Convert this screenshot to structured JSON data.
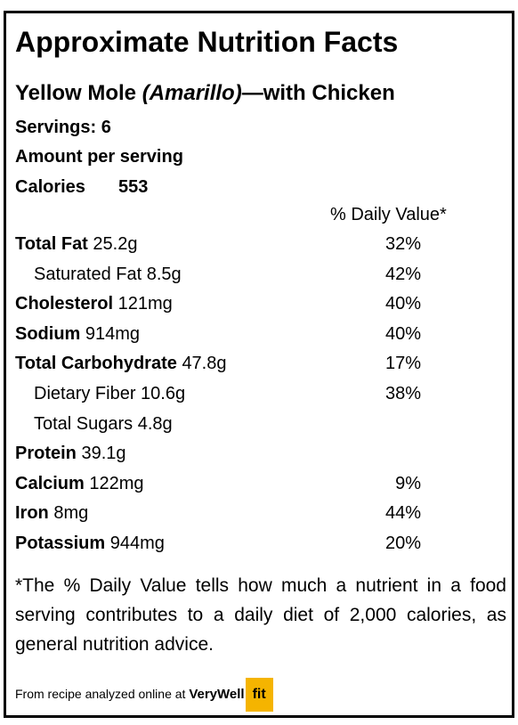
{
  "title": "Approximate Nutrition Facts",
  "recipe": {
    "name": "Yellow Mole",
    "variant": "(Amarillo)",
    "suffix": "—with Chicken"
  },
  "servings": "Servings: 6",
  "amount_label": "Amount per serving",
  "calories": {
    "label": "Calories",
    "value": "553"
  },
  "dv_header": "% Daily Value*",
  "rows": [
    {
      "name": "Total Fat",
      "amount": "25.2g",
      "dv": "32%",
      "bold": true
    },
    {
      "name": "Saturated Fat",
      "amount": "8.5g",
      "dv": "42%",
      "bold": false
    },
    {
      "name": "Cholesterol",
      "amount": "121mg",
      "dv": "40%",
      "bold": true
    },
    {
      "name": "Sodium",
      "amount": "914mg",
      "dv": "40%",
      "bold": true
    },
    {
      "name": "Total Carbohydrate",
      "amount": "47.8g",
      "dv": "17%",
      "bold": true
    },
    {
      "name": "Dietary Fiber",
      "amount": "10.6g",
      "dv": "38%",
      "bold": false
    },
    {
      "name": "Total Sugars",
      "amount": "4.8g",
      "bold": false
    },
    {
      "name": "Protein",
      "amount": "39.1g",
      "bold": true
    },
    {
      "name": "Calcium",
      "amount": "122mg",
      "dv": "9%",
      "bold": true
    },
    {
      "name": "Iron",
      "amount": "8mg",
      "dv": "44%",
      "bold": true
    },
    {
      "name": "Potassium",
      "amount": "944mg",
      "dv": "20%",
      "bold": true
    }
  ],
  "footnote": "*The % Daily Value tells how much a nutrient in a food serving contributes to a daily diet of 2,000 calories, as general nutrition advice.",
  "source": {
    "text": "From recipe analyzed online at",
    "brand": "VeryWell",
    "badge": "fit"
  }
}
